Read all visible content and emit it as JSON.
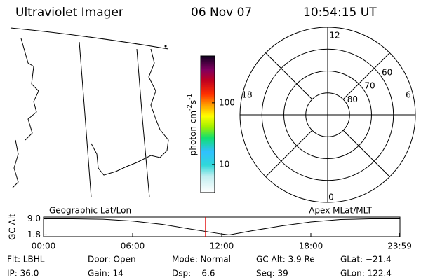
{
  "header": {
    "title": "Ultraviolet Imager",
    "date": "06 Nov 07",
    "time": "10:54:15 UT"
  },
  "colorbar": {
    "label": [
      "photon cm",
      "-2",
      "s",
      "-1"
    ],
    "log": true,
    "lim": [
      3.5,
      575
    ],
    "ticks": [
      10,
      100
    ]
  },
  "polar": {
    "rlim": [
      90,
      50
    ],
    "lat_rings": [
      60,
      70,
      80
    ],
    "mlt_labels": [
      12,
      18,
      6,
      0
    ]
  },
  "track": {
    "title_left": "Geographic Lat/Lon",
    "title_right": "Apex MLat/MLT",
    "ylabel": "GC Alt",
    "x": [
      0,
      2,
      4,
      6,
      8,
      10,
      12,
      12.5,
      14,
      16,
      18,
      20,
      22,
      24
    ],
    "values": [
      9.0,
      9.0,
      8.8,
      8.0,
      6.5,
      4.3,
      2.2,
      1.8,
      3.6,
      5.8,
      7.6,
      8.7,
      9.0,
      9.0
    ],
    "xlim": [
      0,
      24
    ],
    "ylim": [
      1.0,
      9.8
    ],
    "xticks": [
      {
        "value": 0,
        "label": "00:00"
      },
      {
        "value": 6,
        "label": "06:00"
      },
      {
        "value": 12,
        "label": "12:00"
      },
      {
        "value": 18,
        "label": "18:00"
      },
      {
        "value": 23.98,
        "label": "23:59"
      }
    ],
    "yticks": [
      {
        "value": 9,
        "label": "9.0"
      },
      {
        "value": 1.8,
        "label": "1.8"
      }
    ],
    "marker_color": "#e00000"
  },
  "info": [
    [
      "Flt: LBHL",
      "Door: Open",
      "Mode: Normal",
      "GC Alt: 3.9 Re",
      "GLat: −21.4"
    ],
    [
      "IP: 36.0",
      "Gain: 14",
      "Dsp:    6.6",
      "Seq: 39",
      "GLon: 122.4"
    ]
  ]
}
